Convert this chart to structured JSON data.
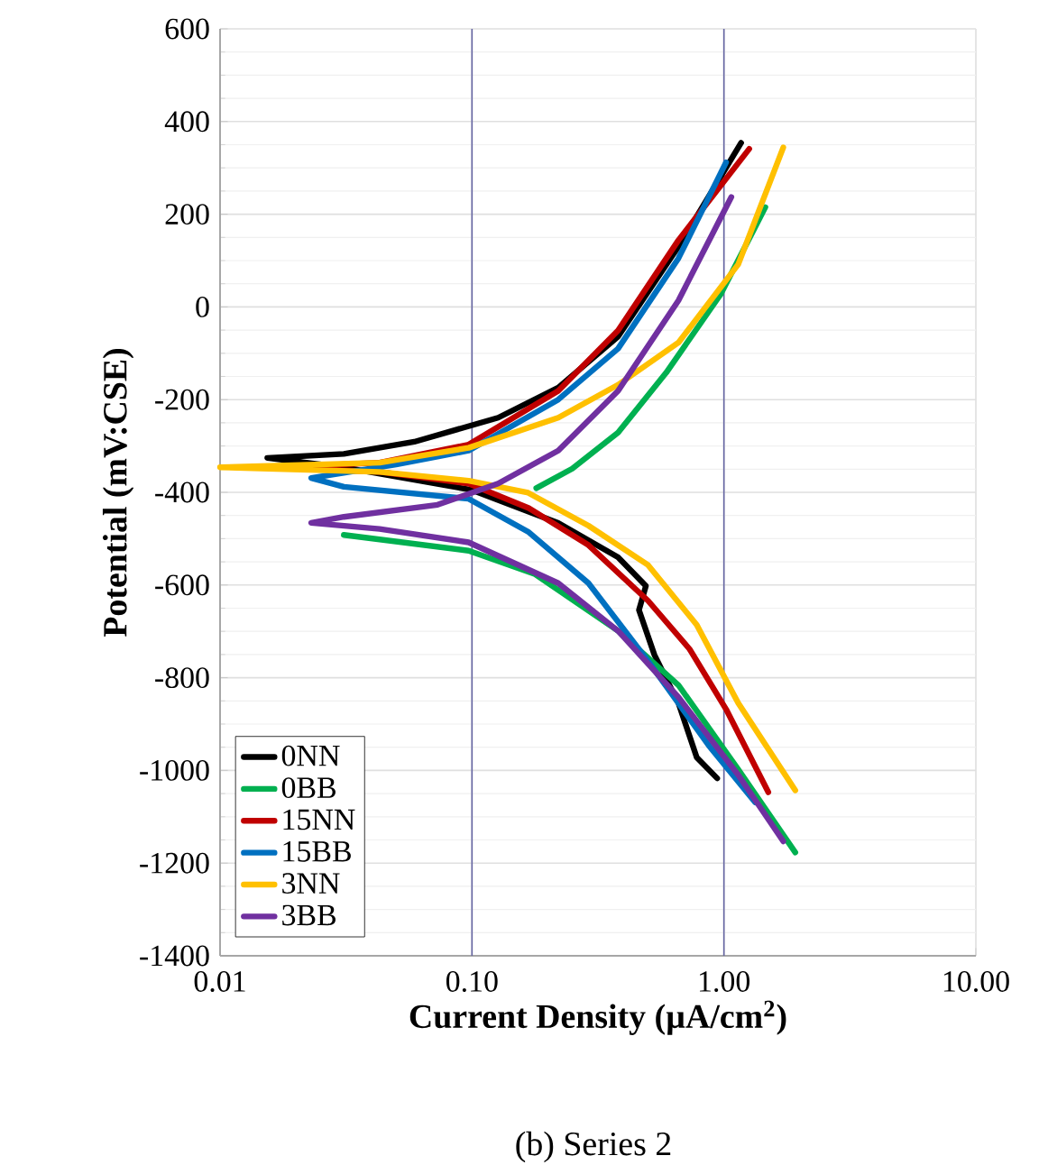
{
  "chart_data": {
    "type": "line",
    "xlabel": "Current Density (µA/cm$^{2}$)",
    "ylabel": "Potential (mV:CSE)",
    "annotations": [
      "(b)  Series 2"
    ],
    "log": "x",
    "xlim": [
      0.01,
      10
    ],
    "ylim": [
      -1400,
      600
    ],
    "xticks": [
      {
        "value": 0.01,
        "label": "0.01"
      },
      {
        "value": 0.1,
        "label": "0.10"
      },
      {
        "value": 1,
        "label": "1.00"
      },
      {
        "value": 10,
        "label": "10.00"
      }
    ],
    "yticks": [
      -1400,
      -1200,
      -1000,
      -800,
      -600,
      -400,
      -200,
      0,
      200,
      400,
      600
    ],
    "grid": true,
    "legend": "bottom left",
    "marker": "none",
    "line_style": "solid",
    "series": [
      {
        "name": "0NN",
        "color": "#000000",
        "x": [
          1.17,
          0.66,
          0.38,
          0.22,
          0.127,
          0.059,
          0.031,
          0.0154,
          0.03,
          0.1,
          0.22,
          0.38,
          0.49,
          0.46,
          0.53,
          0.66,
          0.78,
          0.94
        ],
        "values": [
          354,
          130,
          -64,
          -174,
          -239,
          -291,
          -317,
          -326,
          -345,
          -395,
          -466,
          -540,
          -602,
          -654,
          -751,
          -855,
          -972,
          -1017
        ]
      },
      {
        "name": "0BB",
        "color": "#00b050",
        "x": [
          1.46,
          0.97,
          0.59,
          0.38,
          0.25,
          0.18,
          null,
          0.031,
          0.097,
          0.177,
          0.38,
          0.66,
          1.14,
          1.92
        ],
        "values": [
          215,
          27,
          -142,
          -271,
          -349,
          -391,
          null,
          -492,
          -526,
          -576,
          -699,
          -816,
          -998,
          -1177
        ]
      },
      {
        "name": "15NN",
        "color": "#c00000",
        "x": [
          1.26,
          0.66,
          0.38,
          0.22,
          0.097,
          0.043,
          0.017,
          0.043,
          0.097,
          0.168,
          0.29,
          0.5,
          0.73,
          1.02,
          1.5
        ],
        "values": [
          341,
          144,
          -51,
          -181,
          -297,
          -336,
          -346,
          -356,
          -381,
          -434,
          -514,
          -634,
          -738,
          -868,
          -1047
        ]
      },
      {
        "name": "15BB",
        "color": "#0070c0",
        "x": [
          1.02,
          0.66,
          0.38,
          0.22,
          0.097,
          0.05,
          0.023,
          0.031,
          0.097,
          0.167,
          0.29,
          0.5,
          0.87,
          1.33
        ],
        "values": [
          312,
          105,
          -90,
          -200,
          -310,
          -340,
          -369,
          -388,
          -414,
          -485,
          -596,
          -764,
          -946,
          -1069
        ]
      },
      {
        "name": "3NN",
        "color": "#ffc000",
        "x": [
          1.72,
          1.14,
          0.66,
          0.38,
          0.22,
          0.097,
          0.043,
          0.01,
          0.043,
          0.097,
          0.167,
          0.29,
          0.5,
          0.78,
          1.14,
          1.92
        ],
        "values": [
          344,
          92,
          -77,
          -168,
          -239,
          -304,
          -336,
          -346,
          -356,
          -375,
          -401,
          -472,
          -557,
          -686,
          -855,
          -1043
        ]
      },
      {
        "name": "3BB",
        "color": "#7030a0",
        "x": [
          1.07,
          0.66,
          0.38,
          0.22,
          0.127,
          0.073,
          0.031,
          0.023,
          0.043,
          0.097,
          0.22,
          0.38,
          0.66,
          1.14,
          1.72
        ],
        "values": [
          237,
          14,
          -181,
          -310,
          -381,
          -427,
          -453,
          -466,
          -479,
          -508,
          -596,
          -699,
          -842,
          -1010,
          -1153
        ]
      }
    ]
  }
}
